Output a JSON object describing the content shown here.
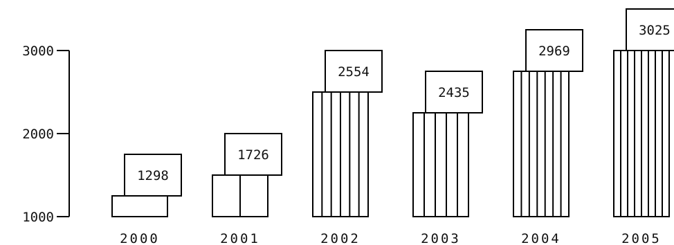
{
  "chart_data": {
    "type": "bar",
    "title": "",
    "xlabel": "",
    "ylabel": "",
    "categories": [
      "2000",
      "2001",
      "2002",
      "2003",
      "2004",
      "2005"
    ],
    "values": [
      1298,
      1726,
      2554,
      2435,
      2969,
      3025
    ],
    "data_labels": [
      "1298",
      "1726",
      "2554",
      "2435",
      "2969",
      "3025"
    ],
    "ylim": [
      1000,
      3000
    ],
    "yticks": [
      1000,
      2000,
      3000
    ],
    "ytick_labels": [
      "1000",
      "2000",
      "3000"
    ],
    "bar_stacking_unit": 250,
    "grid": false,
    "legend": "none",
    "colors": {
      "line": "#000000",
      "text": "#111111",
      "background": "#ffffff"
    }
  }
}
